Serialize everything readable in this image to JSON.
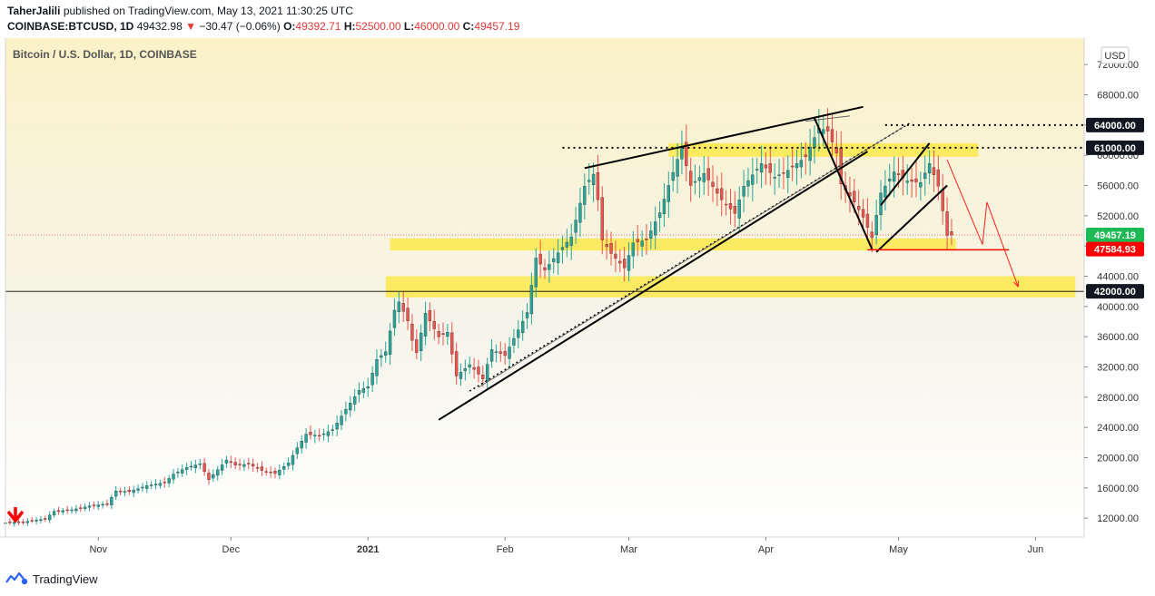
{
  "header": {
    "author": "TaherJalili",
    "published": "published on TradingView.com, May 13, 2021 11:30:25 UTC",
    "symbol": "COINBASE:BTCUSD, 1D",
    "last": "49432.98",
    "arrow": "▼",
    "change": "−30.47 (−0.06%)",
    "o_label": "O:",
    "o_value": "49392.71",
    "h_label": "H:",
    "h_value": "52500.00",
    "l_label": "L:",
    "l_value": "46000.00",
    "c_label": "C:",
    "c_value": "49457.19"
  },
  "footer": {
    "brand": "TradingView",
    "logo_icon": "tradingview-logo-icon"
  },
  "chart_data": {
    "type": "candlestick",
    "title": "Bitcoin / U.S. Dollar, 1D, COINBASE",
    "currency_label": "USD",
    "y_ticks": [
      12000,
      16000,
      20000,
      24000,
      28000,
      32000,
      36000,
      40000,
      44000,
      48000,
      52000,
      56000,
      60000,
      64000,
      68000,
      72000
    ],
    "y_tick_labels": [
      "12000.00",
      "16000.00",
      "20000.00",
      "24000.00",
      "28000.00",
      "32000.00",
      "36000.00",
      "40000.00",
      "44000.00",
      "48000.00",
      "52000.00",
      "56000.00",
      "60000.00",
      "64000.00",
      "68000.00",
      "72000.00"
    ],
    "ylim": [
      9500,
      75500
    ],
    "x_labels": [
      {
        "label": "Nov",
        "date": "2020-11-01"
      },
      {
        "label": "Dec",
        "date": "2020-12-01"
      },
      {
        "label": "2021",
        "date": "2021-01-01"
      },
      {
        "label": "Feb",
        "date": "2021-02-01"
      },
      {
        "label": "Mar",
        "date": "2021-03-01"
      },
      {
        "label": "Apr",
        "date": "2021-04-01"
      },
      {
        "label": "May",
        "date": "2021-05-01"
      },
      {
        "label": "Jun",
        "date": "2021-06-01"
      }
    ],
    "xlim": [
      "2020-10-11",
      "2021-06-12"
    ],
    "close_series": [
      [
        "2020-10-11",
        11400
      ],
      [
        "2020-10-15",
        11500
      ],
      [
        "2020-10-20",
        11900
      ],
      [
        "2020-10-22",
        12900
      ],
      [
        "2020-10-26",
        13100
      ],
      [
        "2020-10-30",
        13600
      ],
      [
        "2020-11-03",
        13900
      ],
      [
        "2020-11-05",
        15600
      ],
      [
        "2020-11-08",
        15500
      ],
      [
        "2020-11-12",
        16300
      ],
      [
        "2020-11-16",
        16700
      ],
      [
        "2020-11-18",
        17800
      ],
      [
        "2020-11-21",
        18700
      ],
      [
        "2020-11-24",
        19200
      ],
      [
        "2020-11-26",
        17100
      ],
      [
        "2020-11-30",
        19700
      ],
      [
        "2020-12-02",
        19000
      ],
      [
        "2020-12-05",
        19150
      ],
      [
        "2020-12-08",
        18300
      ],
      [
        "2020-12-11",
        17900
      ],
      [
        "2020-12-14",
        19300
      ],
      [
        "2020-12-16",
        21300
      ],
      [
        "2020-12-18",
        23100
      ],
      [
        "2020-12-21",
        22900
      ],
      [
        "2020-12-24",
        23700
      ],
      [
        "2020-12-27",
        26400
      ],
      [
        "2020-12-30",
        28900
      ],
      [
        "2021-01-01",
        29400
      ],
      [
        "2021-01-03",
        33000
      ],
      [
        "2021-01-05",
        34000
      ],
      [
        "2021-01-07",
        39500
      ],
      [
        "2021-01-08",
        40600
      ],
      [
        "2021-01-10",
        38100
      ],
      [
        "2021-01-11",
        35500
      ],
      [
        "2021-01-12",
        33900
      ],
      [
        "2021-01-14",
        39100
      ],
      [
        "2021-01-17",
        36000
      ],
      [
        "2021-01-19",
        36600
      ],
      [
        "2021-01-21",
        30800
      ],
      [
        "2021-01-24",
        32300
      ],
      [
        "2021-01-27",
        30400
      ],
      [
        "2021-01-29",
        34300
      ],
      [
        "2021-02-01",
        33500
      ],
      [
        "2021-02-04",
        36900
      ],
      [
        "2021-02-06",
        39200
      ],
      [
        "2021-02-08",
        46400
      ],
      [
        "2021-02-10",
        44800
      ],
      [
        "2021-02-13",
        47100
      ],
      [
        "2021-02-16",
        49200
      ],
      [
        "2021-02-19",
        55900
      ],
      [
        "2021-02-21",
        57500
      ],
      [
        "2021-02-22",
        54100
      ],
      [
        "2021-02-23",
        48800
      ],
      [
        "2021-02-25",
        47000
      ],
      [
        "2021-02-28",
        45100
      ],
      [
        "2021-03-02",
        48400
      ],
      [
        "2021-03-05",
        48800
      ],
      [
        "2021-03-08",
        52400
      ],
      [
        "2021-03-10",
        56000
      ],
      [
        "2021-03-13",
        61200
      ],
      [
        "2021-03-15",
        56000
      ],
      [
        "2021-03-18",
        57600
      ],
      [
        "2021-03-22",
        54100
      ],
      [
        "2021-03-25",
        52300
      ],
      [
        "2021-03-27",
        55900
      ],
      [
        "2021-03-31",
        58900
      ],
      [
        "2021-04-03",
        57100
      ],
      [
        "2021-04-06",
        58000
      ],
      [
        "2021-04-10",
        59800
      ],
      [
        "2021-04-13",
        63600
      ],
      [
        "2021-04-15",
        63200
      ],
      [
        "2021-04-17",
        60300
      ],
      [
        "2021-04-18",
        56200
      ],
      [
        "2021-04-21",
        53800
      ],
      [
        "2021-04-23",
        51800
      ],
      [
        "2021-04-25",
        49100
      ],
      [
        "2021-04-27",
        55000
      ],
      [
        "2021-04-30",
        57800
      ],
      [
        "2021-05-03",
        56600
      ],
      [
        "2021-05-06",
        56400
      ],
      [
        "2021-05-08",
        58900
      ],
      [
        "2021-05-10",
        55900
      ],
      [
        "2021-05-12",
        49400
      ],
      [
        "2021-05-13",
        49457
      ]
    ],
    "horizontal_levels": [
      {
        "price": 64000,
        "label": "64000.00",
        "style": "dotted"
      },
      {
        "price": 61000,
        "label": "61000.00",
        "style": "dotted"
      },
      {
        "price": 49457.19,
        "label": "49457.19",
        "style": "last-price"
      },
      {
        "price": 47584.93,
        "label": "47584.93",
        "style": "red-line"
      },
      {
        "price": 42000,
        "label": "42000.00",
        "style": "horizontal-line"
      }
    ],
    "colors": {
      "up": "#26a69a",
      "down": "#ef5350",
      "zone": "#fde74c",
      "bg_top": "#fbf2c8",
      "bg_bottom": "#ffffff",
      "red": "#ff0000",
      "green": "#1db954"
    }
  }
}
